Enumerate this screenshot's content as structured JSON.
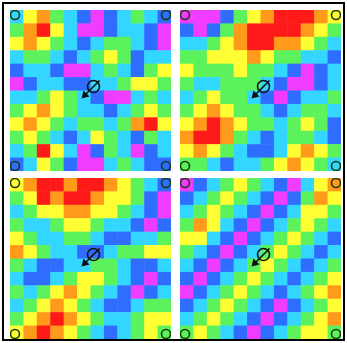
{
  "chart_data": [
    {
      "type": "heatmap",
      "tick_labels": false,
      "cells": [
        [
          4,
          2,
          1,
          3,
          4,
          5,
          6,
          5,
          4,
          3,
          4,
          5
        ],
        [
          3,
          1,
          0,
          2,
          4,
          6,
          6,
          5,
          4,
          4,
          5,
          6
        ],
        [
          2,
          1,
          2,
          3,
          4,
          5,
          4,
          3,
          3,
          4,
          5,
          6
        ],
        [
          4,
          3,
          3,
          4,
          5,
          4,
          3,
          2,
          3,
          5,
          4,
          4
        ],
        [
          5,
          4,
          4,
          5,
          6,
          6,
          4,
          3,
          4,
          5,
          3,
          2
        ],
        [
          6,
          5,
          4,
          4,
          5,
          5,
          4,
          4,
          3,
          2,
          2,
          3
        ],
        [
          4,
          4,
          3,
          2,
          3,
          4,
          5,
          6,
          6,
          4,
          3,
          4
        ],
        [
          3,
          2,
          1,
          2,
          3,
          4,
          4,
          5,
          4,
          3,
          2,
          3
        ],
        [
          2,
          1,
          2,
          3,
          4,
          3,
          3,
          4,
          3,
          1,
          0,
          2
        ],
        [
          3,
          2,
          3,
          4,
          5,
          4,
          2,
          3,
          4,
          5,
          3,
          4
        ],
        [
          4,
          3,
          0,
          2,
          4,
          6,
          5,
          3,
          4,
          6,
          5,
          4
        ],
        [
          5,
          4,
          2,
          3,
          5,
          6,
          6,
          4,
          3,
          4,
          5,
          5
        ]
      ]
    },
    {
      "type": "heatmap",
      "tick_labels": false,
      "cells": [
        [
          6,
          6,
          6,
          5,
          3,
          2,
          1,
          0,
          0,
          0,
          1,
          2
        ],
        [
          5,
          6,
          5,
          3,
          1,
          0,
          0,
          0,
          0,
          1,
          2,
          3
        ],
        [
          4,
          4,
          3,
          2,
          1,
          0,
          0,
          1,
          1,
          2,
          3,
          4
        ],
        [
          3,
          3,
          2,
          2,
          2,
          1,
          2,
          3,
          3,
          4,
          4,
          5
        ],
        [
          2,
          3,
          3,
          3,
          2,
          3,
          3,
          4,
          5,
          6,
          5,
          4
        ],
        [
          3,
          4,
          4,
          3,
          3,
          3,
          4,
          5,
          6,
          6,
          5,
          4
        ],
        [
          4,
          3,
          2,
          3,
          3,
          4,
          5,
          6,
          5,
          4,
          4,
          3
        ],
        [
          3,
          2,
          1,
          2,
          3,
          3,
          4,
          5,
          4,
          3,
          3,
          4
        ],
        [
          2,
          1,
          0,
          1,
          2,
          3,
          3,
          4,
          3,
          2,
          3,
          5
        ],
        [
          1,
          0,
          0,
          1,
          3,
          4,
          5,
          4,
          3,
          3,
          4,
          5
        ],
        [
          2,
          1,
          2,
          3,
          4,
          5,
          5,
          4,
          2,
          1,
          2,
          3
        ],
        [
          3,
          3,
          4,
          5,
          4,
          4,
          3,
          2,
          1,
          2,
          3,
          4
        ]
      ]
    },
    {
      "type": "heatmap",
      "tick_labels": false,
      "cells": [
        [
          2,
          1,
          0,
          0,
          1,
          0,
          0,
          1,
          2,
          3,
          4,
          5
        ],
        [
          3,
          2,
          0,
          1,
          0,
          0,
          1,
          2,
          2,
          3,
          5,
          6
        ],
        [
          4,
          3,
          2,
          2,
          1,
          1,
          2,
          2,
          3,
          4,
          5,
          6
        ],
        [
          3,
          4,
          4,
          3,
          2,
          2,
          3,
          4,
          4,
          5,
          6,
          5
        ],
        [
          2,
          3,
          4,
          4,
          3,
          3,
          4,
          5,
          5,
          4,
          4,
          3
        ],
        [
          1,
          2,
          3,
          4,
          4,
          5,
          5,
          4,
          3,
          3,
          2,
          2
        ],
        [
          3,
          4,
          5,
          5,
          4,
          4,
          3,
          3,
          4,
          5,
          5,
          4
        ],
        [
          4,
          5,
          5,
          4,
          3,
          2,
          2,
          3,
          4,
          5,
          6,
          5
        ],
        [
          3,
          4,
          3,
          2,
          1,
          2,
          3,
          4,
          5,
          6,
          5,
          4
        ],
        [
          4,
          3,
          2,
          1,
          2,
          3,
          4,
          5,
          5,
          4,
          3,
          3
        ],
        [
          3,
          2,
          1,
          0,
          1,
          2,
          3,
          4,
          4,
          3,
          2,
          2
        ],
        [
          2,
          1,
          0,
          1,
          2,
          3,
          4,
          5,
          4,
          3,
          2,
          3
        ]
      ]
    },
    {
      "type": "heatmap",
      "tick_labels": false,
      "cells": [
        [
          6,
          5,
          4,
          3,
          2,
          3,
          4,
          5,
          6,
          4,
          2,
          1
        ],
        [
          5,
          4,
          3,
          2,
          3,
          4,
          5,
          6,
          5,
          3,
          1,
          2
        ],
        [
          4,
          3,
          2,
          3,
          4,
          5,
          6,
          5,
          4,
          2,
          2,
          3
        ],
        [
          3,
          1,
          2,
          4,
          5,
          6,
          5,
          4,
          3,
          2,
          3,
          4
        ],
        [
          2,
          2,
          4,
          5,
          6,
          5,
          4,
          3,
          2,
          3,
          4,
          5
        ],
        [
          3,
          4,
          5,
          6,
          5,
          4,
          3,
          2,
          3,
          4,
          5,
          4
        ],
        [
          4,
          5,
          6,
          5,
          4,
          3,
          2,
          3,
          4,
          5,
          4,
          3
        ],
        [
          5,
          6,
          5,
          4,
          3,
          2,
          3,
          4,
          5,
          4,
          3,
          2
        ],
        [
          6,
          5,
          4,
          3,
          2,
          3,
          4,
          5,
          4,
          3,
          2,
          1
        ],
        [
          5,
          4,
          3,
          2,
          3,
          4,
          5,
          6,
          5,
          4,
          3,
          2
        ],
        [
          4,
          3,
          2,
          3,
          4,
          5,
          6,
          5,
          4,
          3,
          2,
          1
        ],
        [
          3,
          2,
          3,
          4,
          5,
          6,
          5,
          4,
          3,
          2,
          2,
          3
        ]
      ]
    }
  ]
}
